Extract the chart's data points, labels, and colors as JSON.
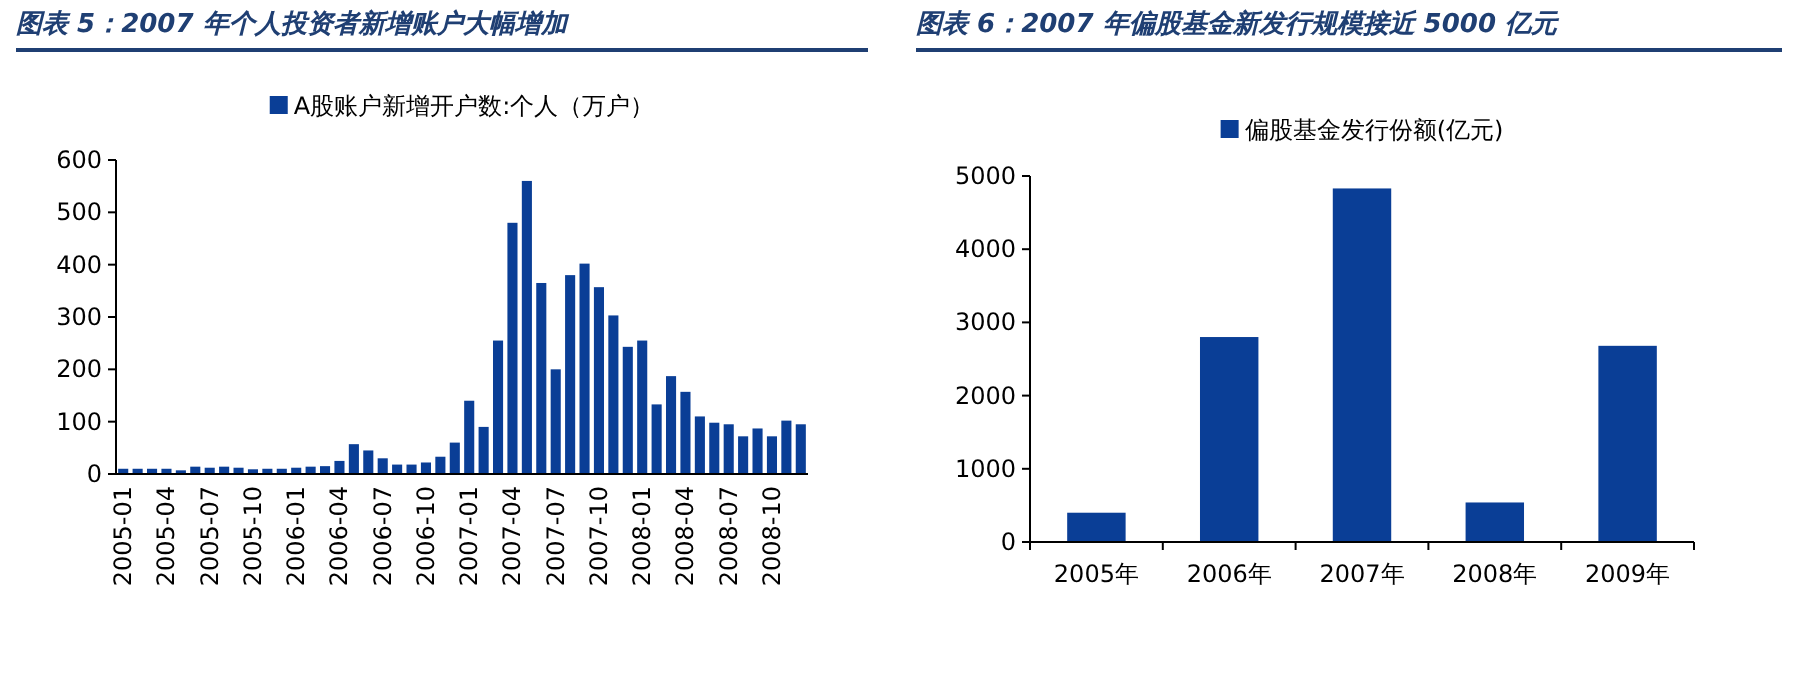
{
  "chart_data": [
    {
      "type": "bar",
      "title": "图表 5：2007 年个人投资者新增账户大幅增加",
      "legend": "top",
      "grid": false,
      "categories": [
        "2005-01",
        null,
        null,
        "2005-04",
        null,
        null,
        "2005-07",
        null,
        null,
        "2005-10",
        null,
        null,
        "2006-01",
        null,
        null,
        "2006-04",
        null,
        null,
        "2006-07",
        null,
        null,
        "2006-10",
        null,
        null,
        "2007-01",
        null,
        null,
        "2007-04",
        null,
        null,
        "2007-07",
        null,
        null,
        "2007-10",
        null,
        null,
        "2008-01",
        null,
        null,
        "2008-04",
        null,
        null,
        "2008-07",
        null,
        null,
        "2008-10",
        null,
        null
      ],
      "series": [
        {
          "name": "A股账户新增开户数:个人（万户）",
          "color": "#0a3e96",
          "values": [
            10,
            10,
            10,
            10,
            7,
            14,
            12,
            14,
            12,
            9,
            10,
            10,
            12,
            14,
            15,
            25,
            57,
            45,
            30,
            18,
            18,
            22,
            33,
            60,
            140,
            90,
            255,
            480,
            560,
            365,
            200,
            380,
            402,
            357,
            303,
            243,
            255,
            133,
            187,
            157,
            110,
            98,
            95,
            72,
            87,
            72,
            102,
            95
          ]
        }
      ],
      "ylim": [
        0,
        600
      ],
      "yticks": [
        0,
        100,
        200,
        300,
        400,
        500,
        600
      ]
    },
    {
      "type": "bar",
      "title": "图表 6：2007 年偏股基金新发行规模接近 5000 亿元",
      "legend": "top",
      "grid": false,
      "categories": [
        "2005年",
        "2006年",
        "2007年",
        "2008年",
        "2009年"
      ],
      "series": [
        {
          "name": "偏股基金发行份额(亿元)",
          "color": "#0a3e96",
          "values": [
            400,
            2800,
            4830,
            540,
            2680
          ]
        }
      ],
      "ylim": [
        0,
        5000
      ],
      "yticks": [
        0,
        1000,
        2000,
        3000,
        4000,
        5000
      ]
    }
  ]
}
